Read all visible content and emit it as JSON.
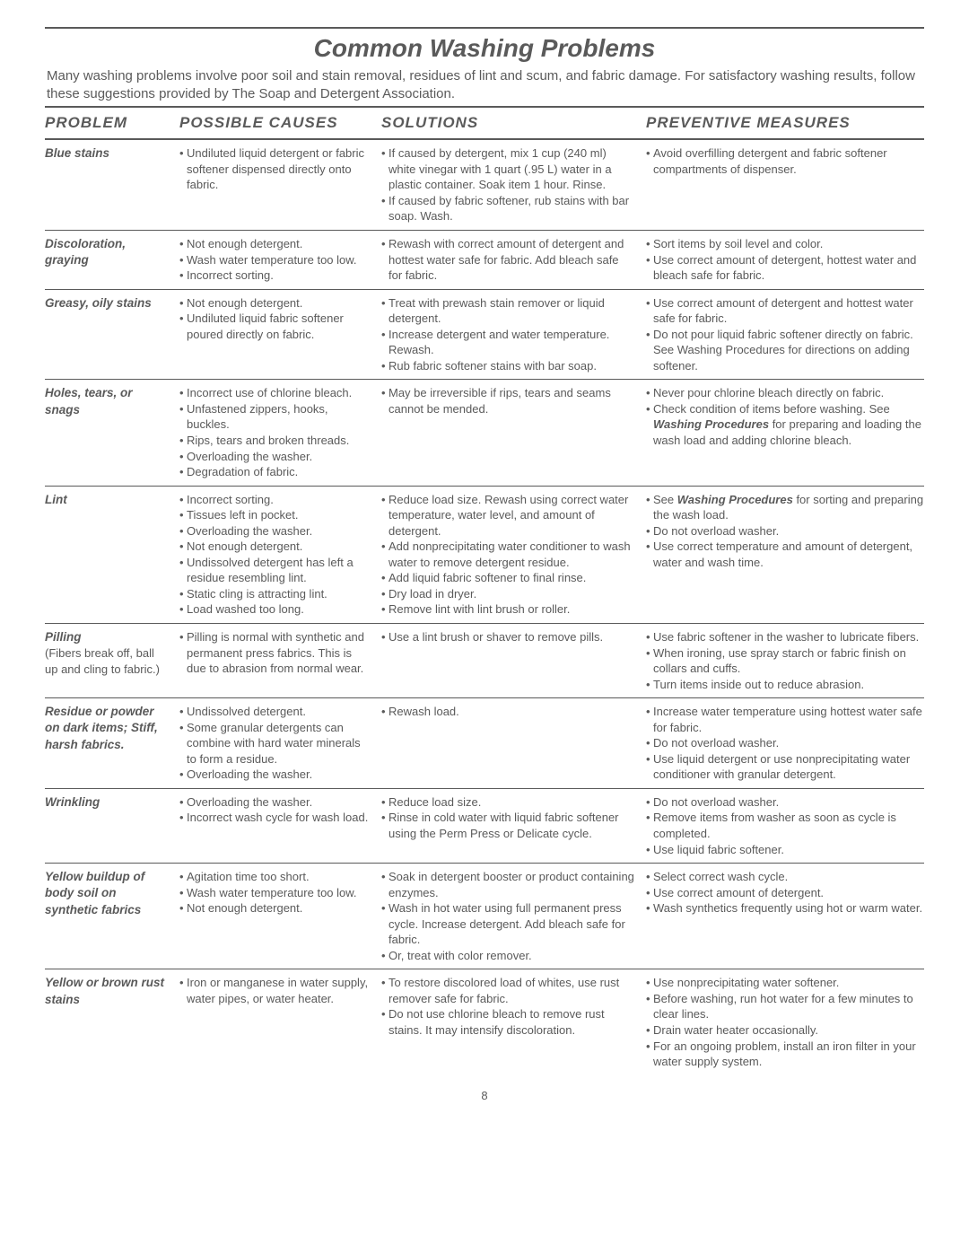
{
  "title": "Common Washing Problems",
  "intro": "Many washing problems involve poor soil and stain removal, residues of lint and scum, and fabric damage. For satisfactory washing results, follow these suggestions provided by The Soap and Detergent Association.",
  "headers": {
    "problem": "PROBLEM",
    "causes": "POSSIBLE  CAUSES",
    "solutions": "SOLUTIONS",
    "preventive": "PREVENTIVE  MEASURES"
  },
  "rows": [
    {
      "problem": "Blue stains",
      "causes": [
        "Undiluted liquid detergent or fabric softener dispensed directly onto fabric."
      ],
      "solutions": [
        "If caused by detergent, mix 1 cup (240 ml) white vinegar with 1 quart (.95 L) water in a plastic container. Soak item 1 hour. Rinse.",
        "If caused by fabric softener, rub stains with bar soap. Wash."
      ],
      "preventive": [
        "Avoid overfilling detergent and fabric softener compartments of dispenser."
      ]
    },
    {
      "problem": "Discoloration, graying",
      "causes": [
        "Not enough detergent.",
        "Wash water temperature too low.",
        "Incorrect sorting."
      ],
      "solutions": [
        "Rewash with correct amount of detergent and hottest water safe for fabric. Add bleach safe for fabric."
      ],
      "preventive": [
        "Sort items by soil level and color.",
        "Use correct amount of detergent, hottest water and bleach safe for fabric."
      ]
    },
    {
      "problem": "Greasy, oily stains",
      "causes": [
        "Not enough detergent.",
        "Undiluted liquid fabric softener poured directly on fabric."
      ],
      "solutions": [
        "Treat with prewash stain remover or liquid detergent.",
        "Increase detergent and water temperature. Rewash.",
        "Rub fabric softener stains with bar soap."
      ],
      "preventive": [
        "Use correct  amount of detergent and hottest water safe for fabric.",
        "Do not pour liquid fabric softener directly on fabric. See Washing Procedures for directions on adding softener."
      ]
    },
    {
      "problem": "Holes, tears, or snags",
      "causes": [
        "Incorrect use of chlorine bleach.",
        "Unfastened zippers, hooks, buckles.",
        "Rips, tears and broken threads.",
        "Overloading the washer.",
        "Degradation of fabric."
      ],
      "solutions": [
        "May be irreversible if rips, tears and seams cannot be mended."
      ],
      "preventive": [
        "Never pour chlorine bleach directly on fabric.",
        "Check condition of items before washing. See <b><i>Washing Procedures</i></b> for preparing and loading the wash load and adding chlorine bleach."
      ]
    },
    {
      "problem": "Lint",
      "causes": [
        "Incorrect sorting.",
        "Tissues left in pocket.",
        "Overloading the washer.",
        "Not enough detergent.",
        "Undissolved detergent has left a residue resembling lint.",
        "Static cling is attracting lint.",
        "Load washed too long."
      ],
      "solutions": [
        "Reduce load size. Rewash using correct water temperature, water level, and amount of detergent.",
        "Add nonprecipitating water conditioner to wash water to remove detergent residue.",
        "Add liquid fabric softener to final rinse.",
        "Dry load in dryer.",
        "Remove lint with lint brush or roller."
      ],
      "preventive": [
        "See <b><i>Washing Procedures</i></b> for sorting and preparing the wash load.",
        "Do not overload washer.",
        "Use correct temperature and amount of detergent, water and wash time."
      ]
    },
    {
      "problem": "Pilling",
      "problem_sub": "(Fibers break off, ball up and cling to fabric.)",
      "causes": [
        "Pilling is normal with synthetic and permanent press fabrics. This is due to abrasion from normal wear."
      ],
      "solutions": [
        " Use a lint brush or shaver to remove pills."
      ],
      "preventive": [
        "Use fabric softener in the washer to lubricate fibers.",
        "When ironing, use spray starch or fabric finish on collars  and cuffs.",
        "Turn items inside out to reduce abrasion."
      ]
    },
    {
      "problem": "Residue or powder on dark items; Stiff, harsh fabrics.",
      "causes": [
        "Undissolved detergent.",
        " Some granular detergents can combine with hard water minerals to form a residue.",
        "Overloading the washer."
      ],
      "solutions": [
        " Rewash load."
      ],
      "preventive": [
        "Increase water temperature using hottest water safe for fabric.",
        "Do not overload washer.",
        "Use liquid detergent or use nonprecipitating water conditioner with granular detergent."
      ]
    },
    {
      "problem": "Wrinkling",
      "causes": [
        "Overloading the washer.",
        "Incorrect wash cycle for wash load."
      ],
      "solutions": [
        "Reduce load size.",
        "Rinse in cold water with liquid fabric softener using the Perm Press or Delicate cycle."
      ],
      "preventive": [
        "Do not overload washer.",
        "Remove items from washer as soon as cycle is completed.",
        "Use liquid fabric softener."
      ]
    },
    {
      "problem": "Yellow buildup of body soil on synthetic fabrics",
      "causes": [
        "Agitation time too short.",
        "Wash water temperature too low.",
        "Not enough detergent."
      ],
      "solutions": [
        "Soak in detergent booster or product containing enzymes.",
        "Wash in hot water  using full permanent press cycle. Increase detergent. Add bleach safe for fabric.",
        "Or, treat with color remover."
      ],
      "preventive": [
        "Select correct wash cycle.",
        "Use correct amount of detergent.",
        "Wash synthetics frequently using hot or warm water."
      ]
    },
    {
      "problem": "Yellow or brown rust stains",
      "causes": [
        "Iron or manganese in water supply, water pipes, or water heater."
      ],
      "solutions": [
        "To restore discolored load of whites, use rust remover safe for fabric.",
        "Do not use chlorine bleach to remove rust stains. It may intensify discoloration."
      ],
      "preventive": [
        "Use nonprecipitating water softener.",
        "Before washing, run hot water for a few minutes to clear lines.",
        "Drain water heater occasionally.",
        "For an ongoing problem, install an iron filter in your water supply system."
      ]
    }
  ],
  "page_number": "8"
}
